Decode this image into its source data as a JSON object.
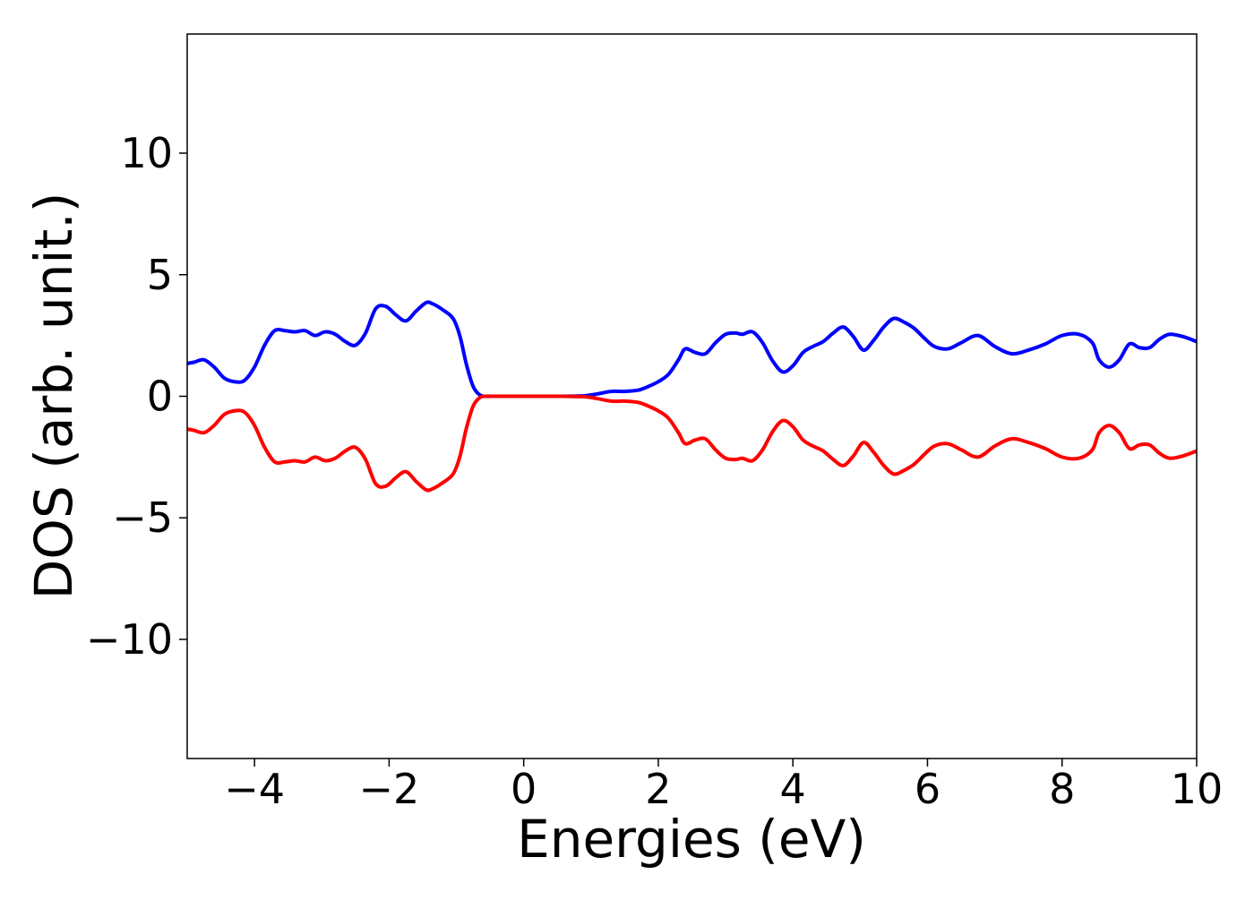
{
  "chart_data": {
    "type": "line",
    "title": "",
    "xlabel": "Energies (eV)",
    "ylabel": "DOS (arb. unit.)",
    "xlim": [
      -5,
      10
    ],
    "ylim": [
      -14.9,
      14.9
    ],
    "xticks": [
      {
        "value": -4,
        "label": "−4"
      },
      {
        "value": -2,
        "label": "−2"
      },
      {
        "value": 0,
        "label": "0"
      },
      {
        "value": 2,
        "label": "2"
      },
      {
        "value": 4,
        "label": "4"
      },
      {
        "value": 6,
        "label": "6"
      },
      {
        "value": 8,
        "label": "8"
      },
      {
        "value": 10,
        "label": "10"
      }
    ],
    "yticks": [
      {
        "value": -10,
        "label": "−10"
      },
      {
        "value": -5,
        "label": "−5"
      },
      {
        "value": 0,
        "label": "0"
      },
      {
        "value": 5,
        "label": "5"
      },
      {
        "value": 10,
        "label": "10"
      }
    ],
    "grid": false,
    "legend": "none",
    "series": [
      {
        "color": "#0000ff",
        "x": [
          -5.0,
          -4.9,
          -4.75,
          -4.6,
          -4.45,
          -4.3,
          -4.15,
          -4.0,
          -3.85,
          -3.7,
          -3.55,
          -3.4,
          -3.25,
          -3.1,
          -2.95,
          -2.8,
          -2.65,
          -2.5,
          -2.35,
          -2.2,
          -2.05,
          -1.9,
          -1.75,
          -1.6,
          -1.45,
          -1.35,
          -1.2,
          -1.05,
          -0.95,
          -0.85,
          -0.75,
          -0.65,
          -0.55,
          -0.45,
          -0.3,
          0.0,
          0.5,
          0.9,
          1.1,
          1.3,
          1.5,
          1.7,
          1.85,
          2.0,
          2.15,
          2.3,
          2.4,
          2.55,
          2.7,
          2.85,
          3.0,
          3.15,
          3.25,
          3.4,
          3.55,
          3.7,
          3.85,
          4.0,
          4.15,
          4.3,
          4.45,
          4.6,
          4.75,
          4.9,
          5.05,
          5.2,
          5.35,
          5.5,
          5.65,
          5.8,
          5.95,
          6.1,
          6.3,
          6.5,
          6.75,
          7.0,
          7.25,
          7.5,
          7.75,
          8.0,
          8.25,
          8.45,
          8.55,
          8.7,
          8.85,
          9.0,
          9.15,
          9.3,
          9.45,
          9.6,
          9.8,
          10.0
        ],
        "y": [
          1.35,
          1.4,
          1.5,
          1.2,
          0.75,
          0.6,
          0.65,
          1.2,
          2.1,
          2.7,
          2.7,
          2.65,
          2.7,
          2.5,
          2.65,
          2.55,
          2.25,
          2.1,
          2.6,
          3.6,
          3.7,
          3.35,
          3.1,
          3.5,
          3.85,
          3.8,
          3.55,
          3.2,
          2.5,
          1.3,
          0.4,
          0.05,
          0.0,
          0.0,
          0.0,
          0.0,
          0.0,
          0.02,
          0.1,
          0.2,
          0.2,
          0.25,
          0.4,
          0.6,
          0.9,
          1.5,
          1.95,
          1.8,
          1.75,
          2.2,
          2.55,
          2.6,
          2.55,
          2.65,
          2.2,
          1.45,
          1.0,
          1.25,
          1.8,
          2.05,
          2.25,
          2.6,
          2.85,
          2.45,
          1.9,
          2.3,
          2.85,
          3.2,
          3.05,
          2.8,
          2.4,
          2.05,
          1.95,
          2.2,
          2.5,
          2.05,
          1.75,
          1.9,
          2.15,
          2.5,
          2.55,
          2.2,
          1.5,
          1.2,
          1.5,
          2.15,
          2.0,
          2.0,
          2.35,
          2.55,
          2.45,
          2.25
        ]
      },
      {
        "color": "#ff0000",
        "x": [
          -5.0,
          -4.9,
          -4.75,
          -4.6,
          -4.45,
          -4.3,
          -4.15,
          -4.0,
          -3.85,
          -3.7,
          -3.55,
          -3.4,
          -3.25,
          -3.1,
          -2.95,
          -2.8,
          -2.65,
          -2.5,
          -2.35,
          -2.2,
          -2.05,
          -1.9,
          -1.75,
          -1.6,
          -1.45,
          -1.35,
          -1.2,
          -1.05,
          -0.95,
          -0.85,
          -0.75,
          -0.65,
          -0.55,
          -0.45,
          -0.3,
          0.0,
          0.5,
          0.9,
          1.1,
          1.3,
          1.5,
          1.7,
          1.85,
          2.0,
          2.15,
          2.3,
          2.4,
          2.55,
          2.7,
          2.85,
          3.0,
          3.15,
          3.25,
          3.4,
          3.55,
          3.7,
          3.85,
          4.0,
          4.15,
          4.3,
          4.45,
          4.6,
          4.75,
          4.9,
          5.05,
          5.2,
          5.35,
          5.5,
          5.65,
          5.8,
          5.95,
          6.1,
          6.3,
          6.5,
          6.75,
          7.0,
          7.25,
          7.5,
          7.75,
          8.0,
          8.25,
          8.45,
          8.55,
          8.7,
          8.85,
          9.0,
          9.15,
          9.3,
          9.45,
          9.6,
          9.8,
          10.0
        ],
        "y": [
          -1.35,
          -1.4,
          -1.5,
          -1.2,
          -0.75,
          -0.6,
          -0.65,
          -1.2,
          -2.1,
          -2.7,
          -2.7,
          -2.65,
          -2.7,
          -2.5,
          -2.65,
          -2.55,
          -2.25,
          -2.1,
          -2.6,
          -3.6,
          -3.7,
          -3.35,
          -3.1,
          -3.5,
          -3.85,
          -3.8,
          -3.55,
          -3.2,
          -2.5,
          -1.3,
          -0.4,
          -0.05,
          0.0,
          0.0,
          0.0,
          0.0,
          0.0,
          -0.02,
          -0.1,
          -0.2,
          -0.2,
          -0.25,
          -0.4,
          -0.6,
          -0.9,
          -1.5,
          -1.95,
          -1.8,
          -1.75,
          -2.2,
          -2.55,
          -2.6,
          -2.55,
          -2.65,
          -2.2,
          -1.45,
          -1.0,
          -1.25,
          -1.8,
          -2.05,
          -2.25,
          -2.6,
          -2.85,
          -2.45,
          -1.9,
          -2.3,
          -2.85,
          -3.2,
          -3.05,
          -2.8,
          -2.4,
          -2.05,
          -1.95,
          -2.2,
          -2.5,
          -2.05,
          -1.75,
          -1.9,
          -2.15,
          -2.5,
          -2.55,
          -2.2,
          -1.5,
          -1.2,
          -1.5,
          -2.15,
          -2.0,
          -2.0,
          -2.35,
          -2.55,
          -2.45,
          -2.25
        ]
      }
    ]
  }
}
